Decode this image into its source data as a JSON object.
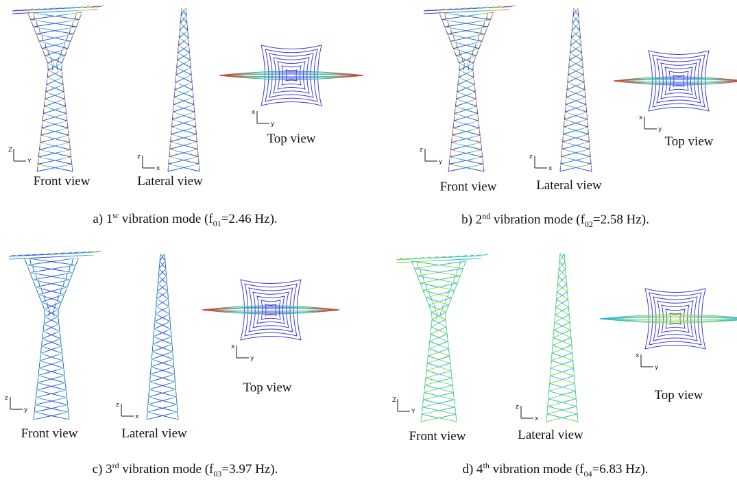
{
  "panels": [
    {
      "views": {
        "front": "Front view",
        "lateral": "Lateral view",
        "top": "Top view"
      },
      "caption": {
        "label": "a) 1",
        "ordinal_suffix": "sr",
        "text": " vibration mode (f",
        "subscript": "01",
        "rest": "=2.46 Hz)."
      },
      "triads": {
        "front": [
          "Z",
          "Y"
        ],
        "lateral": [
          "z",
          "x"
        ],
        "top": [
          "x",
          "y"
        ]
      }
    },
    {
      "views": {
        "front": "Front view",
        "lateral": "Lateral view",
        "top": "Top view"
      },
      "caption": {
        "label": "b) 2",
        "ordinal_suffix": "nd",
        "text": " vibration mode (f",
        "subscript": "02",
        "rest": "=2.58 Hz)."
      },
      "triads": {
        "front": [
          "z",
          "y"
        ],
        "lateral": [
          "z",
          "x"
        ],
        "top": [
          "x",
          "y"
        ]
      }
    },
    {
      "views": {
        "front": "Front view",
        "lateral": "Lateral view",
        "top": "Top view"
      },
      "caption": {
        "label": "c) 3",
        "ordinal_suffix": "rd",
        "text": " vibration mode (f",
        "subscript": "03",
        "rest": "=3.97 Hz)."
      },
      "triads": {
        "front": [
          "z",
          "y"
        ],
        "lateral": [
          "z",
          "x"
        ],
        "top": [
          "x",
          "y"
        ]
      }
    },
    {
      "views": {
        "front": "Front view",
        "lateral": "Lateral view",
        "top": "Top view"
      },
      "caption": {
        "label": "d) 4",
        "ordinal_suffix": "th",
        "text": " vibration mode (f",
        "subscript": "04",
        "rest": "=6.83 Hz)."
      },
      "triads": {
        "front": [
          "Z",
          "Y"
        ],
        "lateral": [
          "z",
          "x"
        ],
        "top": [
          "x",
          "y"
        ]
      }
    }
  ]
}
